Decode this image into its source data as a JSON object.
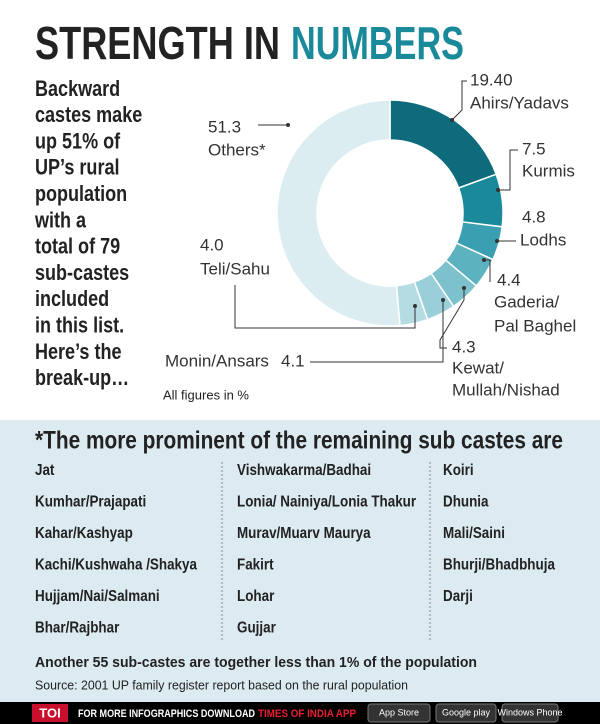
{
  "header": {
    "title": "STRENGTH IN",
    "title_accent": "NUMBERS"
  },
  "intro": {
    "lines": [
      "Backward",
      "castes make",
      "up 51% of",
      "UP’s rural",
      "population",
      "with a",
      "total of 79",
      "sub-castes",
      "included",
      "in this list.",
      "Here’s the",
      "break-up…"
    ]
  },
  "chart_data": {
    "type": "pie",
    "donut": true,
    "categories": [
      [
        "Ahirs/Yadavs"
      ],
      [
        "Kurmis"
      ],
      [
        "Lodhs"
      ],
      [
        "Gaderia/",
        "Pal Baghel"
      ],
      [
        "Kewat/",
        "Mullah/Nishad"
      ],
      [
        "Monin/Ansars"
      ],
      [
        "Teli/Sahu"
      ],
      [
        "Others*"
      ]
    ],
    "values": [
      19.4,
      7.5,
      4.8,
      4.4,
      4.3,
      4.1,
      4.0,
      51.3
    ],
    "value_labels": [
      "19.40",
      "7.5",
      "4.8",
      "4.4",
      "4.3",
      "4.1",
      "4.0",
      "51.3"
    ],
    "colors": [
      "#0d6b7b",
      "#1a8a9b",
      "#3a9fb0",
      "#5db2c0",
      "#7cc1cc",
      "#99cfd8",
      "#b6dce3",
      "#dcedf2"
    ],
    "note": "All figures in %"
  },
  "remaining": {
    "title": "*The more prominent of the remaining sub castes are",
    "columns": [
      [
        "Jat",
        "Kumhar/Prajapati",
        "Kahar/Kashyap",
        "Kachi/Kushwaha /Shakya",
        "Hujjam/Nai/Salmani",
        "Bhar/Rajbhar"
      ],
      [
        "Vishwakarma/Badhai",
        "Lonia/ Nainiya/Lonia Thakur",
        "Murav/Muarv Maurya",
        "Fakirt",
        "Lohar",
        "Gujjar"
      ],
      [
        "Koiri",
        "Dhunia",
        "Mali/Saini",
        "Bhurji/Bhadbhuja",
        "Darji"
      ]
    ],
    "footnote": "Another 55 sub-castes are together less than 1% of the population",
    "source": "Source: 2001 UP family register report based on the rural population"
  },
  "footer": {
    "brand": "TOI",
    "text": "FOR MORE  INFOGRAPHICS DOWNLOAD",
    "app": "TIMES OF INDIA APP",
    "badges": [
      "App Store",
      "Google play",
      "Windows Phone"
    ]
  }
}
